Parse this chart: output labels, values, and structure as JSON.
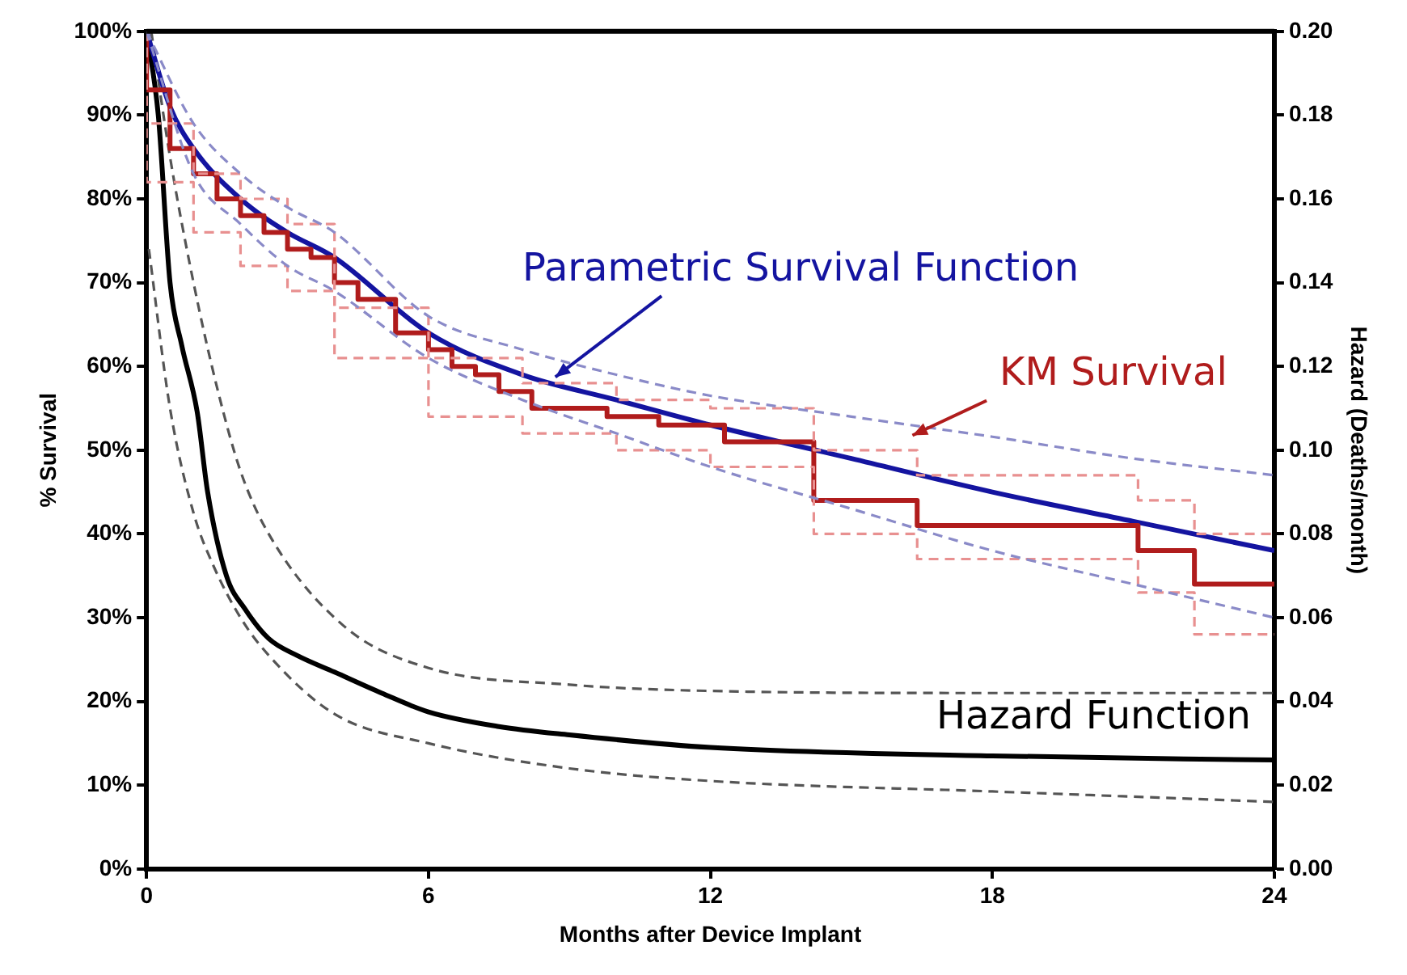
{
  "chart_data": {
    "type": "line",
    "xlabel": "Months after Device Implant",
    "ylabel": "% Survival",
    "y2label": "Hazard (Deaths/month)",
    "xlim": [
      0,
      24
    ],
    "xticks": [
      0,
      6,
      12,
      18,
      24
    ],
    "ylim": [
      0,
      100
    ],
    "yticks": [
      {
        "value": 0,
        "label": "0%"
      },
      {
        "value": 10,
        "label": "10%"
      },
      {
        "value": 20,
        "label": "20%"
      },
      {
        "value": 30,
        "label": "30%"
      },
      {
        "value": 40,
        "label": "40%"
      },
      {
        "value": 50,
        "label": "50%"
      },
      {
        "value": 60,
        "label": "60%"
      },
      {
        "value": 70,
        "label": "70%"
      },
      {
        "value": 80,
        "label": "80%"
      },
      {
        "value": 90,
        "label": "90%"
      },
      {
        "value": 100,
        "label": "100%"
      }
    ],
    "y2lim": [
      0,
      0.2
    ],
    "y2ticks": [
      {
        "value": 0,
        "label": "0.00"
      },
      {
        "value": 0.02,
        "label": "0.02"
      },
      {
        "value": 0.04,
        "label": "0.04"
      },
      {
        "value": 0.06,
        "label": "0.06"
      },
      {
        "value": 0.08,
        "label": "0.08"
      },
      {
        "value": 0.1,
        "label": "0.10"
      },
      {
        "value": 0.12,
        "label": "0.12"
      },
      {
        "value": 0.14,
        "label": "0.14"
      },
      {
        "value": 0.16,
        "label": "0.16"
      },
      {
        "value": 0.18,
        "label": "0.18"
      },
      {
        "value": 0.2,
        "label": "0.20"
      }
    ],
    "grid": false,
    "legend": false,
    "marker": "none",
    "series": [
      {
        "type": "line",
        "color": "#8a8ac8",
        "line_style": "dashed",
        "x": [
          0,
          1,
          2,
          3,
          4,
          6,
          8,
          10,
          12,
          15,
          18,
          21,
          24
        ],
        "values": [
          100,
          89,
          83,
          79,
          76,
          66,
          62,
          59,
          56.5,
          54,
          51.6,
          49,
          47
        ]
      },
      {
        "type": "line",
        "color": "#8a8ac8",
        "line_style": "dashed",
        "x": [
          0,
          1,
          2,
          3,
          4,
          6,
          8,
          10,
          12,
          15,
          18,
          21,
          24
        ],
        "values": [
          100,
          83,
          77,
          72,
          69,
          61,
          56,
          52,
          48,
          43,
          38,
          34,
          30
        ]
      },
      {
        "type": "step",
        "color": "#e89090",
        "line_style": "dashed",
        "x": [
          0,
          1,
          2,
          3,
          4,
          6,
          8,
          10,
          12,
          14.2,
          16.4,
          21.1,
          22.3,
          23.2,
          24
        ],
        "values": [
          100,
          89,
          83,
          80,
          77,
          67,
          61,
          58,
          56,
          55,
          50,
          47,
          44,
          40,
          40
        ]
      },
      {
        "type": "step",
        "color": "#e89090",
        "line_style": "dashed",
        "x": [
          0,
          1,
          2,
          3,
          4,
          6,
          8,
          10,
          12,
          14.2,
          16.4,
          21.1,
          22.3,
          23.2,
          24
        ],
        "values": [
          100,
          82,
          76,
          72,
          69,
          61,
          54,
          52,
          50,
          48,
          40,
          37,
          33,
          28,
          28
        ]
      },
      {
        "type": "step",
        "name": "KM Survival",
        "color": "#b01c1c",
        "line_style": "solid",
        "x": [
          0,
          0.5,
          1,
          1.5,
          2,
          2.5,
          3,
          3.5,
          4,
          4.5,
          5.3,
          6,
          6.5,
          7,
          7.5,
          8.2,
          9.8,
          10.9,
          12.3,
          14.2,
          16.4,
          21.1,
          22.3,
          23.2,
          24
        ],
        "values": [
          100,
          93,
          86,
          83,
          80,
          78,
          76,
          74,
          73,
          70,
          68,
          64,
          62,
          60,
          59,
          57,
          55,
          54,
          53,
          51,
          44,
          41,
          38,
          34,
          34
        ]
      },
      {
        "type": "line",
        "name": "Parametric Survival Function",
        "color": "#1414a0",
        "line_style": "solid",
        "x": [
          0,
          0.5,
          1,
          2,
          3,
          4,
          6,
          8,
          10,
          12,
          15,
          18,
          21,
          24
        ],
        "values": [
          100,
          91,
          86,
          80,
          76,
          73,
          64,
          59,
          56,
          53,
          49,
          45,
          41.5,
          38
        ]
      },
      {
        "type": "line",
        "axis": "y2",
        "color": "#555555",
        "line_style": "dashed",
        "x": [
          0.1,
          0.5,
          1,
          1.5,
          2,
          2.6,
          4.2,
          6,
          9,
          12,
          18,
          24
        ],
        "values": [
          0.2,
          0.17,
          0.14,
          0.115,
          0.095,
          0.08,
          0.058,
          0.048,
          0.044,
          0.0425,
          0.042,
          0.042
        ]
      },
      {
        "type": "line",
        "axis": "y2",
        "color": "#555555",
        "line_style": "dashed",
        "x": [
          0.05,
          0.5,
          1,
          1.4,
          2,
          2.6,
          4,
          6,
          9,
          12,
          18,
          24
        ],
        "values": [
          0.148,
          0.11,
          0.085,
          0.073,
          0.06,
          0.051,
          0.037,
          0.03,
          0.024,
          0.021,
          0.0185,
          0.016
        ]
      },
      {
        "type": "line",
        "axis": "y2",
        "name": "Hazard Function",
        "color": "#000000",
        "line_style": "solid",
        "x": [
          0,
          0.25,
          0.5,
          0.75,
          1.08,
          1.3,
          1.7,
          2.1,
          2.6,
          3.2,
          4,
          5,
          6,
          7.5,
          9,
          12,
          18,
          24
        ],
        "values": [
          0.2,
          0.18,
          0.14,
          0.125,
          0.109,
          0.09,
          0.07,
          0.062,
          0.055,
          0.051,
          0.047,
          0.042,
          0.0375,
          0.034,
          0.032,
          0.029,
          0.027,
          0.026
        ]
      }
    ]
  }
}
